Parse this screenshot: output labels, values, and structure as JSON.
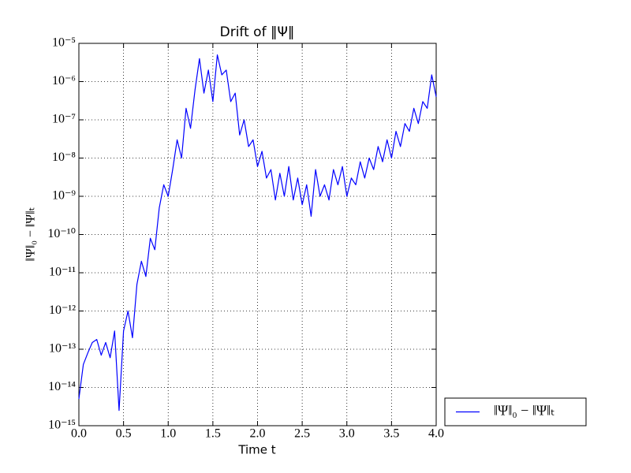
{
  "chart_data": {
    "type": "line",
    "title": "Drift of ‖Ψ‖",
    "xlabel": "Time t",
    "ylabel": "‖Ψ‖₀ − ‖Ψ‖ₜ",
    "yscale": "log",
    "grid": true,
    "legend": "lower right",
    "xlim": [
      0,
      4
    ],
    "ylim": [
      1e-15,
      1e-05
    ],
    "xticks": [
      {
        "value": 0,
        "label": "0.0"
      },
      0.5,
      {
        "value": 1,
        "label": "1.0"
      },
      1.5,
      {
        "value": 2,
        "label": "2.0"
      },
      2.5,
      {
        "value": 3,
        "label": "3.0"
      },
      3.5,
      {
        "value": 4,
        "label": "4.0"
      }
    ],
    "yticks": [
      {
        "value": 1e-15,
        "label": "10⁻¹⁵"
      },
      {
        "value": 1e-14,
        "label": "10⁻¹⁴"
      },
      {
        "value": 1e-13,
        "label": "10⁻¹³"
      },
      {
        "value": 1e-12,
        "label": "10⁻¹²"
      },
      {
        "value": 1e-11,
        "label": "10⁻¹¹"
      },
      {
        "value": 1e-10,
        "label": "10⁻¹⁰"
      },
      {
        "value": 1e-09,
        "label": "10⁻⁹"
      },
      {
        "value": 1e-08,
        "label": "10⁻⁸"
      },
      {
        "value": 1e-07,
        "label": "10⁻⁷"
      },
      {
        "value": 1e-06,
        "label": "10⁻⁶"
      },
      {
        "value": 1e-05,
        "label": "10⁻⁵"
      }
    ],
    "x": [
      0,
      0.05,
      0.1,
      0.15,
      0.2,
      0.25,
      0.3,
      0.35,
      0.4,
      0.45,
      0.5,
      0.55,
      0.6,
      0.65,
      0.7,
      0.75,
      0.8,
      0.85,
      0.9,
      0.95,
      1.0,
      1.05,
      1.1,
      1.15,
      1.2,
      1.25,
      1.3,
      1.35,
      1.4,
      1.45,
      1.5,
      1.55,
      1.6,
      1.65,
      1.7,
      1.75,
      1.8,
      1.85,
      1.9,
      1.95,
      2.0,
      2.05,
      2.1,
      2.15,
      2.2,
      2.25,
      2.3,
      2.35,
      2.4,
      2.45,
      2.5,
      2.55,
      2.6,
      2.65,
      2.7,
      2.75,
      2.8,
      2.85,
      2.9,
      2.95,
      3.0,
      3.05,
      3.1,
      3.15,
      3.2,
      3.25,
      3.3,
      3.35,
      3.4,
      3.45,
      3.5,
      3.55,
      3.6,
      3.65,
      3.7,
      3.75,
      3.8,
      3.85,
      3.9,
      3.95,
      4.0
    ],
    "series": [
      {
        "name": "‖Ψ‖₀ − ‖Ψ‖ₜ",
        "color": "#0000ff",
        "values": [
          5e-15,
          4e-14,
          8e-14,
          1.5e-13,
          1.8e-13,
          7e-14,
          1.5e-13,
          6e-14,
          3e-13,
          2.5e-15,
          3e-13,
          1e-12,
          2e-13,
          5e-12,
          2e-11,
          8e-12,
          8e-11,
          4e-11,
          5e-10,
          2e-09,
          1e-09,
          5e-09,
          3e-08,
          1e-08,
          2e-07,
          6e-08,
          6e-07,
          4e-06,
          5e-07,
          2e-06,
          3e-07,
          5e-06,
          1.5e-06,
          2e-06,
          3e-07,
          5e-07,
          4e-08,
          1e-07,
          2e-08,
          3e-08,
          6e-09,
          1.5e-08,
          3e-09,
          5e-09,
          8e-10,
          4e-09,
          1e-09,
          6e-09,
          8e-10,
          3e-09,
          6e-10,
          2e-09,
          3e-10,
          5e-09,
          1e-09,
          2e-09,
          8e-10,
          5e-09,
          2e-09,
          6e-09,
          1e-09,
          3e-09,
          2e-09,
          8e-09,
          3e-09,
          1e-08,
          5e-09,
          2e-08,
          8e-09,
          3e-08,
          1e-08,
          5e-08,
          2e-08,
          8e-08,
          5e-08,
          2e-07,
          8e-08,
          3e-07,
          2e-07,
          1.5e-06,
          4e-07
        ]
      }
    ]
  }
}
